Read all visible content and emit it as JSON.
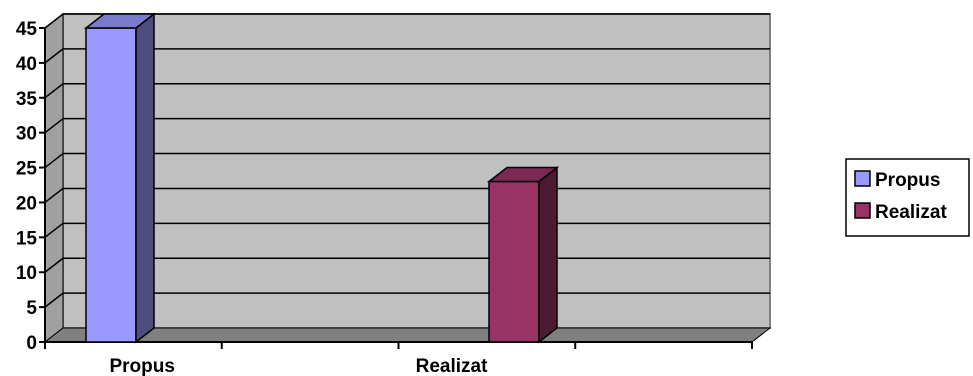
{
  "chart_data": {
    "type": "bar",
    "style": "3d-column",
    "categories": [
      "Propus",
      "Realizat"
    ],
    "series": [
      {
        "name": "Propus",
        "values": [
          45,
          null
        ],
        "color": "#9999ff",
        "side_color": "#4d4d80",
        "top_color": "#7a7acc"
      },
      {
        "name": "Realizat",
        "values": [
          null,
          23
        ],
        "color": "#993366",
        "side_color": "#4d1a33",
        "top_color": "#7a2952"
      }
    ],
    "ylim": [
      0,
      45
    ],
    "yticks": [
      0,
      5,
      10,
      15,
      20,
      25,
      30,
      35,
      40,
      45
    ],
    "grid": true,
    "wall_color": "#c0c0c0",
    "floor_color": "#808080",
    "legend": {
      "position": "right",
      "entries": [
        "Propus",
        "Realizat"
      ]
    }
  }
}
